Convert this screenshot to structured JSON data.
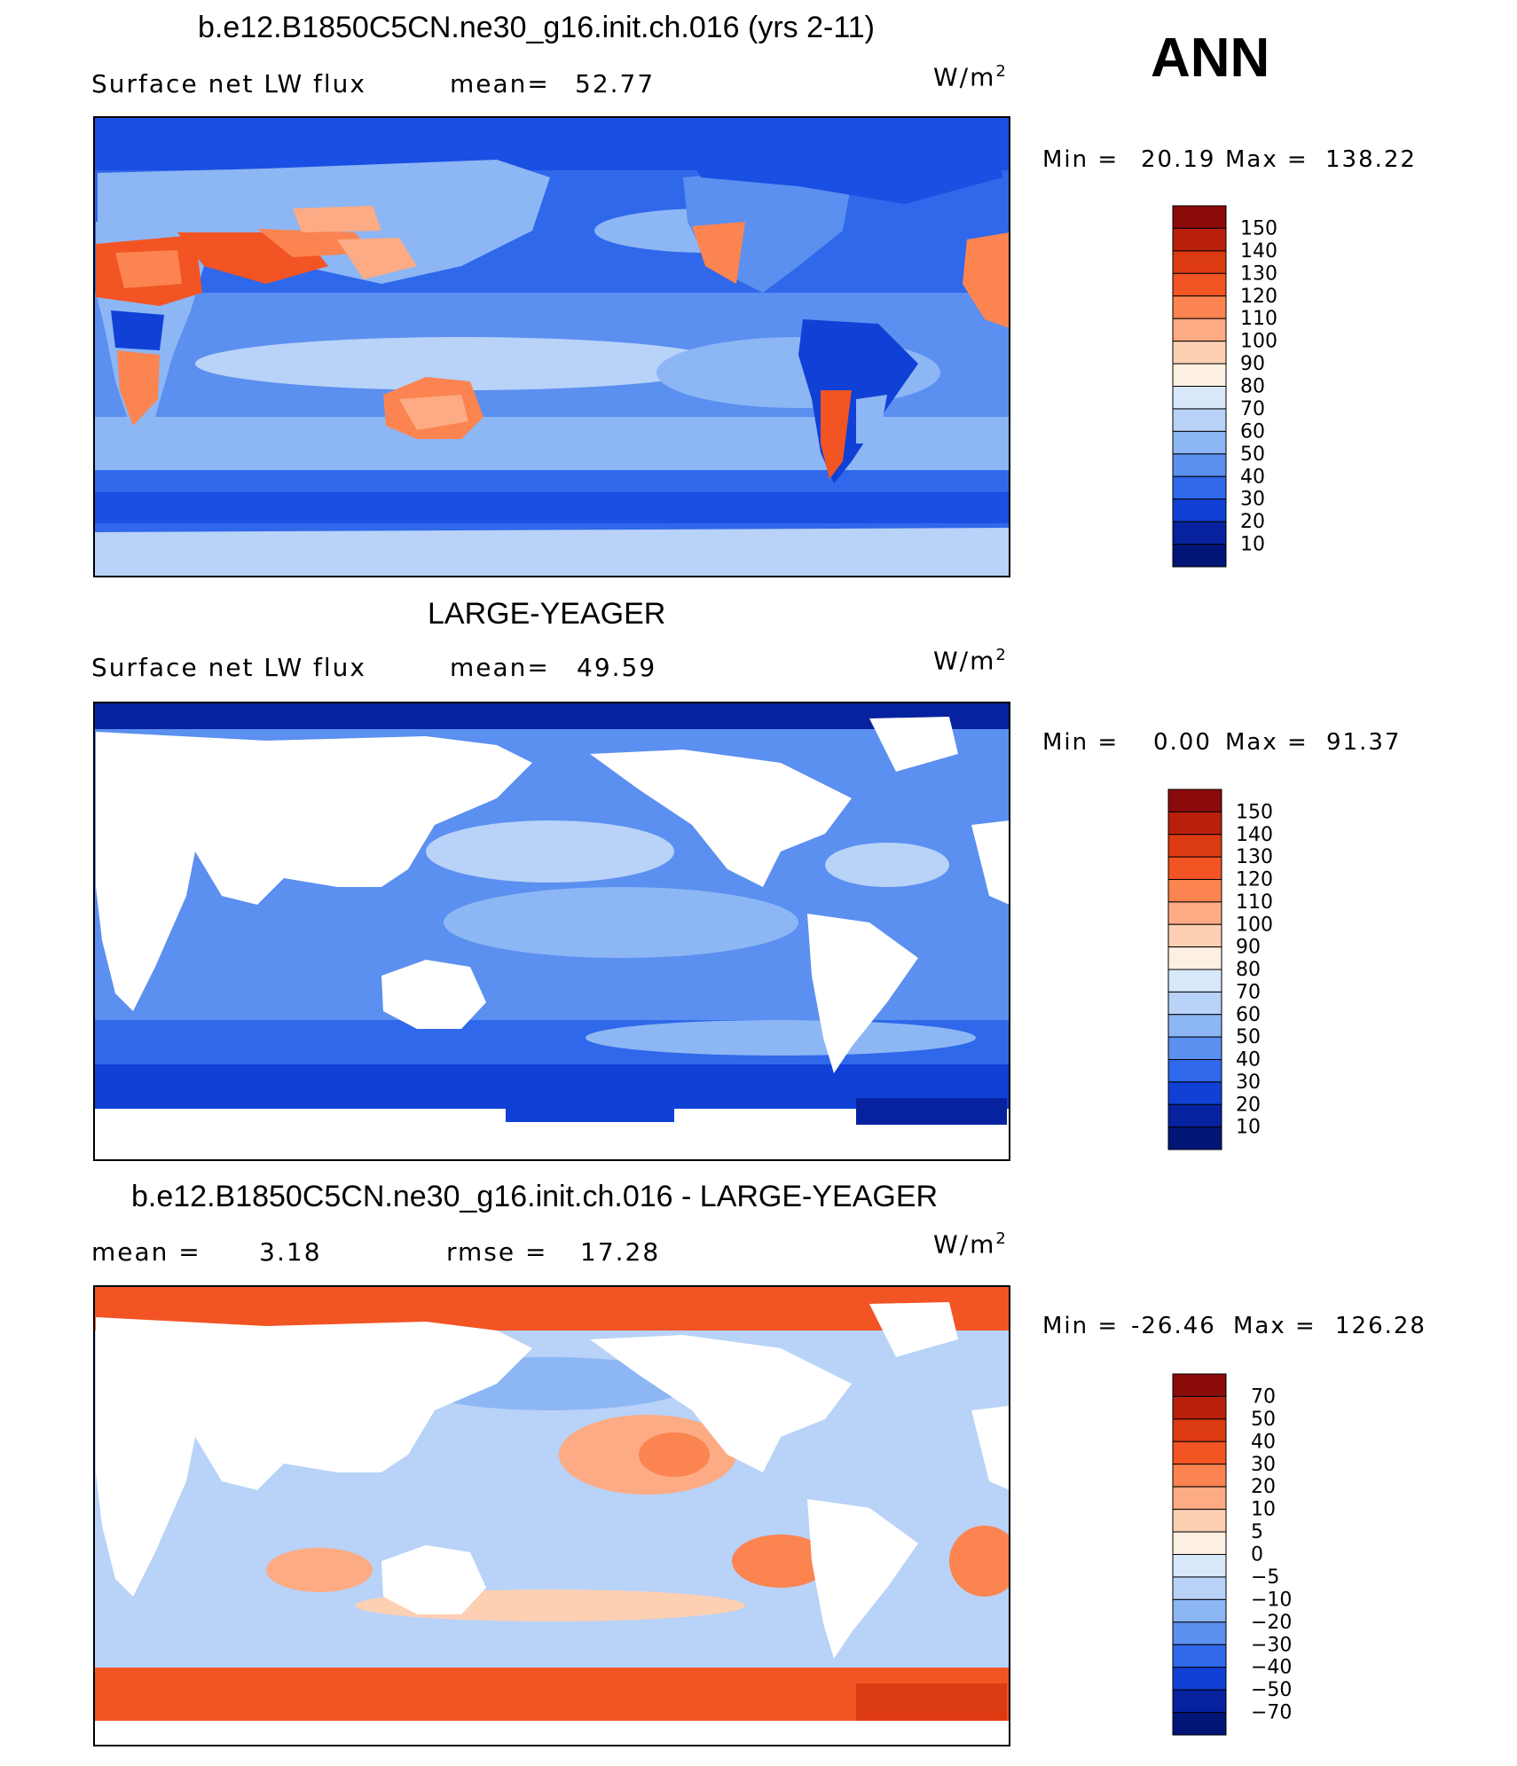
{
  "season": "ANN",
  "units": {
    "base": "W/m",
    "exp": "2"
  },
  "chart_data": [
    {
      "type": "heatmap",
      "title": "b.e12.B1850C5CN.ne30_g16.init.ch.016 (yrs 2-11)",
      "variable": "Surface net LW flux",
      "left_stat": "Surface net LW flux",
      "right_label": "mean=",
      "right_value": "52.77",
      "min_label": "Min =",
      "min_value": "20.19",
      "max_label": "Max =",
      "max_value": "138.22",
      "colorbar_labels": [
        "150",
        "140",
        "130",
        "120",
        "110",
        "100",
        "90",
        "80",
        "70",
        "60",
        "50",
        "40",
        "30",
        "20",
        "10"
      ],
      "colors": [
        "#8b0a0a",
        "#b8200c",
        "#dc3a10",
        "#f25424",
        "#fb8450",
        "#fcab84",
        "#fdd0b4",
        "#fdf0e2",
        "#d8e8fa",
        "#b8d2f8",
        "#8db6f5",
        "#5b8ff0",
        "#2f68ea",
        "#1040d6",
        "#06229e",
        "#001575"
      ],
      "lon_range": [
        -180,
        180
      ],
      "lat_range": [
        -90,
        90
      ]
    },
    {
      "type": "heatmap",
      "title": "LARGE-YEAGER",
      "variable": "Surface net LW flux",
      "left_stat": "Surface net LW flux",
      "right_label": "mean=",
      "right_value": "49.59",
      "min_label": "Min =",
      "min_value": "0.00",
      "max_label": "Max =",
      "max_value": "91.37",
      "colorbar_labels": [
        "150",
        "140",
        "130",
        "120",
        "110",
        "100",
        "90",
        "80",
        "70",
        "60",
        "50",
        "40",
        "30",
        "20",
        "10"
      ],
      "colors": [
        "#8b0a0a",
        "#b8200c",
        "#dc3a10",
        "#f25424",
        "#fb8450",
        "#fcab84",
        "#fdd0b4",
        "#fdf0e2",
        "#d8e8fa",
        "#b8d2f8",
        "#8db6f5",
        "#5b8ff0",
        "#2f68ea",
        "#1040d6",
        "#06229e",
        "#001575"
      ],
      "lon_range": [
        -180,
        180
      ],
      "lat_range": [
        -90,
        90
      ]
    },
    {
      "type": "heatmap",
      "title": "b.e12.B1850C5CN.ne30_g16.init.ch.016 - LARGE-YEAGER",
      "left_stat": "mean =      3.18",
      "right_label": "rmse =",
      "right_value": "17.28",
      "min_label": "Min =",
      "min_value": "-26.46",
      "max_label": "Max =",
      "max_value": "126.28",
      "colorbar_labels": [
        "70",
        "50",
        "40",
        "30",
        "20",
        "10",
        "5",
        "0",
        "−5",
        "−10",
        "−20",
        "−30",
        "−40",
        "−50",
        "−70"
      ],
      "colors": [
        "#8b0a0a",
        "#b8200c",
        "#dc3a10",
        "#f25424",
        "#fb8450",
        "#fcab84",
        "#fdd0b4",
        "#fdf0e2",
        "#d8e8fa",
        "#b8d2f8",
        "#8db6f5",
        "#5b8ff0",
        "#2f68ea",
        "#1040d6",
        "#06229e",
        "#001575"
      ],
      "lon_range": [
        -180,
        180
      ],
      "lat_range": [
        -90,
        90
      ]
    }
  ]
}
